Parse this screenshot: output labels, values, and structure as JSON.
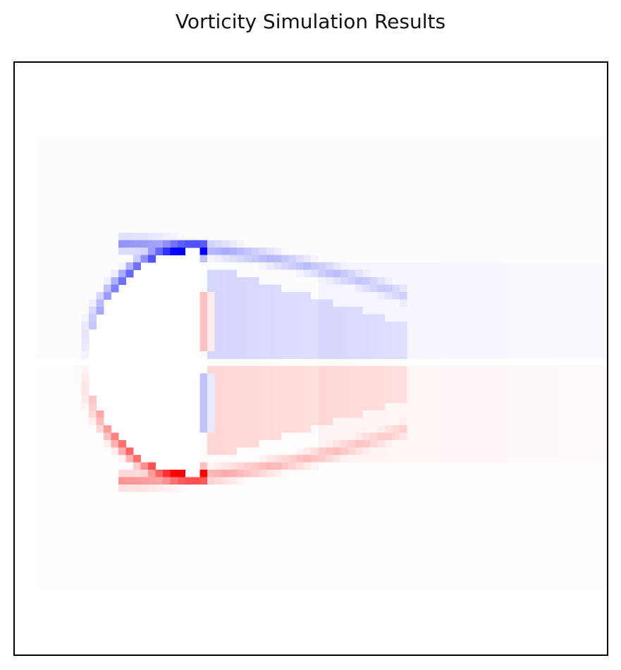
{
  "chart_data": {
    "type": "heatmap",
    "title": "Vorticity Simulation Results",
    "xlabel": "",
    "ylabel": "",
    "axes_ticks": false,
    "grid": false,
    "legend": "none",
    "colormap": {
      "negative": "#0000ff",
      "zero": "#ffffff",
      "positive": "#ff0000"
    },
    "value_range": [
      -1,
      1
    ],
    "grid_size": [
      80,
      80
    ],
    "obstacle": {
      "shape": "half-disc",
      "description": "solid body with flat trailing edge"
    },
    "field": {
      "wake_sign_upper": -1,
      "wake_sign_lower": 1,
      "boundary_layer_peak": 0.9,
      "wake_bubble_value": 0.15,
      "far_wake_value": 0.03
    }
  }
}
